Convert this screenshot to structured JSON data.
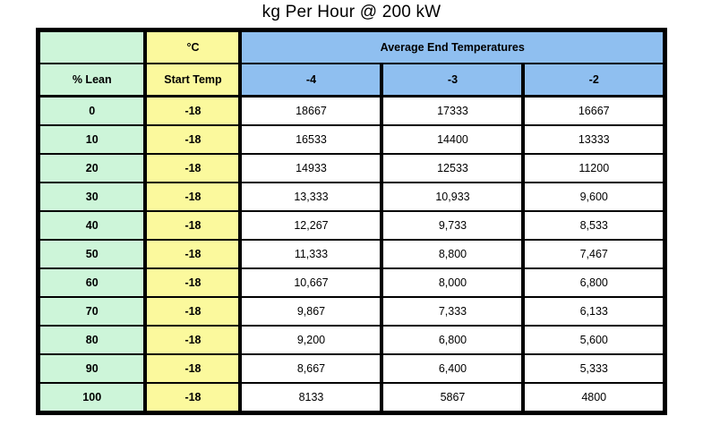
{
  "title": "kg Per Hour @ 200 kW",
  "colors": {
    "lean_column_bg": "#CDF5D9",
    "start_temp_column_bg": "#FBF99D",
    "end_temp_header_bg": "#8FBFF0",
    "value_cell_bg": "#FFFFFF",
    "border": "#000000",
    "text": "#000000"
  },
  "chart_data": {
    "type": "table",
    "title": "kg Per Hour @ 200 kW",
    "header": {
      "corner_blank": "",
      "unit_label": "°C",
      "group_label": "Average End Temperatures",
      "lean_label": "% Lean",
      "start_temp_label": "Start Temp",
      "end_temp_labels": [
        "-4",
        "-3",
        "-2"
      ]
    },
    "rows": [
      {
        "lean": "0",
        "start_temp": "-18",
        "values": [
          "18667",
          "17333",
          "16667"
        ]
      },
      {
        "lean": "10",
        "start_temp": "-18",
        "values": [
          "16533",
          "14400",
          "13333"
        ]
      },
      {
        "lean": "20",
        "start_temp": "-18",
        "values": [
          "14933",
          "12533",
          "11200"
        ]
      },
      {
        "lean": "30",
        "start_temp": "-18",
        "values": [
          "13,333",
          "10,933",
          "9,600"
        ]
      },
      {
        "lean": "40",
        "start_temp": "-18",
        "values": [
          "12,267",
          "9,733",
          "8,533"
        ]
      },
      {
        "lean": "50",
        "start_temp": "-18",
        "values": [
          "11,333",
          "8,800",
          "7,467"
        ]
      },
      {
        "lean": "60",
        "start_temp": "-18",
        "values": [
          "10,667",
          "8,000",
          "6,800"
        ]
      },
      {
        "lean": "70",
        "start_temp": "-18",
        "values": [
          "9,867",
          "7,333",
          "6,133"
        ]
      },
      {
        "lean": "80",
        "start_temp": "-18",
        "values": [
          "9,200",
          "6,800",
          "5,600"
        ]
      },
      {
        "lean": "90",
        "start_temp": "-18",
        "values": [
          "8,667",
          "6,400",
          "5,333"
        ]
      },
      {
        "lean": "100",
        "start_temp": "-18",
        "values": [
          "8133",
          "5867",
          "4800"
        ]
      }
    ]
  }
}
